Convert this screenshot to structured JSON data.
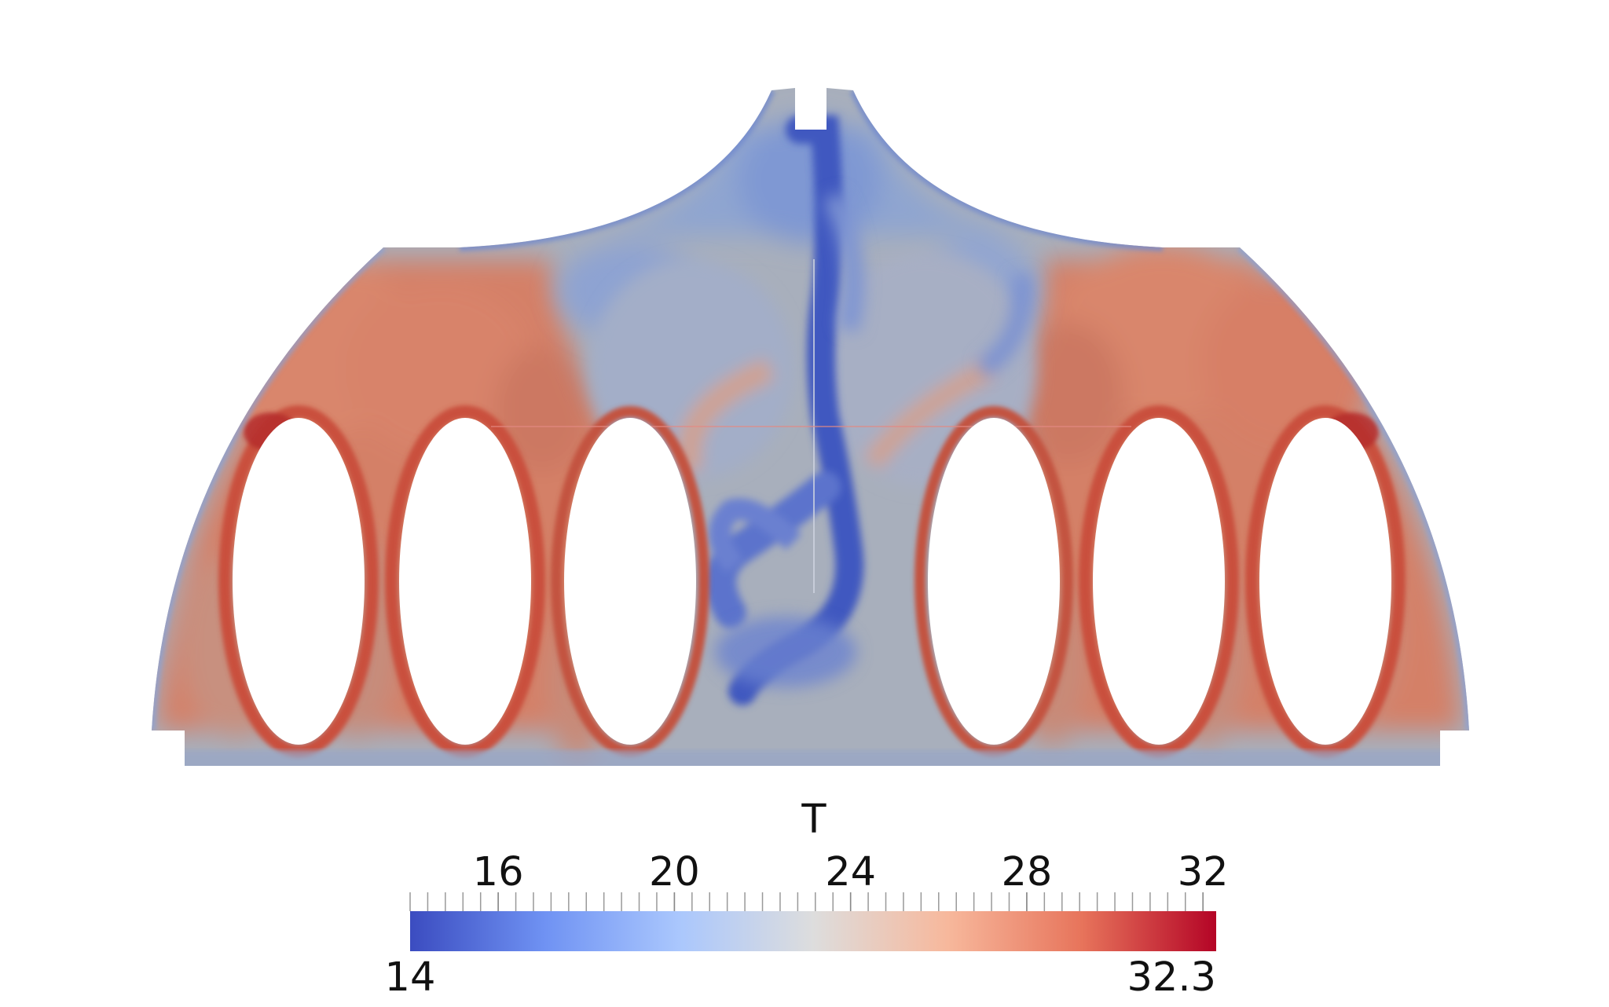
{
  "scalar_bar": {
    "title": "T",
    "range_min_label": "14",
    "range_max_label": "32.3",
    "range": [
      14,
      32.3
    ],
    "major_ticks": [
      16,
      20,
      24,
      28,
      32
    ],
    "major_tick_labels": [
      "16",
      "20",
      "24",
      "28",
      "32"
    ],
    "minor_tick_step": 0.4,
    "colormap": "Cool to Warm",
    "colormap_stops": [
      "#3b4cc0",
      "#6f92f3",
      "#aac7fd",
      "#dddddd",
      "#f7b89c",
      "#e7745b",
      "#b40426"
    ]
  },
  "field_colors": {
    "background_neutral": "#a7aebb",
    "warm": "#d97a5e",
    "hot": "#b52a2c",
    "cold": "#3f59c0",
    "cool": "#7f98d3"
  }
}
